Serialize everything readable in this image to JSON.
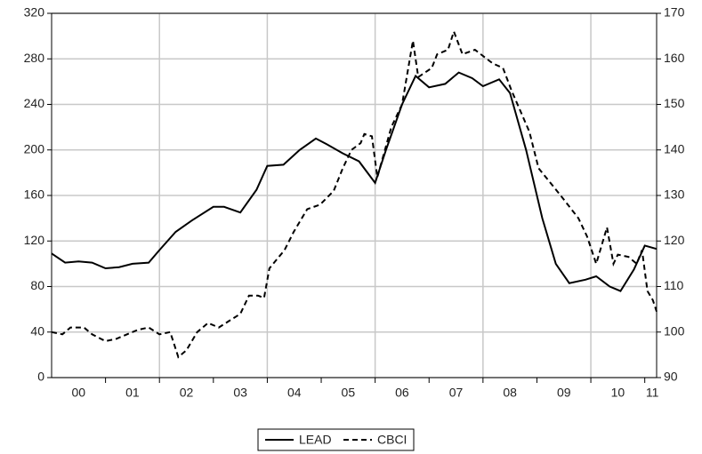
{
  "chart_data": {
    "type": "line",
    "xlim": [
      2000,
      2011.22
    ],
    "xticks": [
      {
        "value": 2000.5,
        "label": "00"
      },
      {
        "value": 2001.5,
        "label": "01"
      },
      {
        "value": 2002.5,
        "label": "02"
      },
      {
        "value": 2003.5,
        "label": "03"
      },
      {
        "value": 2004.5,
        "label": "04"
      },
      {
        "value": 2005.5,
        "label": "05"
      },
      {
        "value": 2006.5,
        "label": "06"
      },
      {
        "value": 2007.5,
        "label": "07"
      },
      {
        "value": 2008.5,
        "label": "08"
      },
      {
        "value": 2009.5,
        "label": "09"
      },
      {
        "value": 2010.5,
        "label": "10"
      },
      {
        "value": 2011.14,
        "label": "11"
      }
    ],
    "xminorticks": [
      2001,
      2002,
      2003,
      2004,
      2005,
      2006,
      2007,
      2008,
      2009,
      2010,
      2011
    ],
    "xgrid": [
      2002,
      2004,
      2006,
      2008,
      2010
    ],
    "ylim": [
      0,
      320
    ],
    "yticks": [
      0,
      40,
      80,
      120,
      160,
      200,
      240,
      280,
      320
    ],
    "y2lim": [
      90,
      170
    ],
    "y2ticks": [
      90,
      100,
      110,
      120,
      130,
      140,
      150,
      160,
      170
    ],
    "grid": true,
    "legend": "bottom",
    "series": [
      {
        "name": "LEAD",
        "color": "#000000",
        "dash": false,
        "x": [
          2000.0,
          2000.25,
          2000.5,
          2000.75,
          2001.0,
          2001.25,
          2001.5,
          2001.8,
          2002.0,
          2002.3,
          2002.6,
          2003.0,
          2003.2,
          2003.5,
          2003.8,
          2004.0,
          2004.3,
          2004.6,
          2004.9,
          2005.1,
          2005.4,
          2005.7,
          2006.0,
          2006.2,
          2006.5,
          2006.75,
          2007.0,
          2007.3,
          2007.55,
          2007.8,
          2008.0,
          2008.3,
          2008.5,
          2008.8,
          2009.1,
          2009.35,
          2009.6,
          2009.9,
          2010.1,
          2010.35,
          2010.55,
          2010.8,
          2011.0,
          2011.22
        ],
        "values": [
          109,
          101,
          102,
          101,
          96,
          97,
          100,
          101,
          112,
          128,
          138,
          150,
          150,
          145,
          165,
          186,
          187,
          200,
          210,
          205,
          197,
          190,
          171,
          200,
          240,
          265,
          255,
          258,
          268,
          263,
          256,
          262,
          250,
          200,
          140,
          100,
          83,
          86,
          89,
          80,
          76,
          95,
          116,
          113
        ]
      },
      {
        "name": "CBCI",
        "color": "#000000",
        "dash": true,
        "axis": "y2",
        "x": [
          2000.0,
          2000.2,
          2000.35,
          2000.6,
          2000.75,
          2001.0,
          2001.2,
          2001.4,
          2001.6,
          2001.8,
          2002.0,
          2002.2,
          2002.35,
          2002.5,
          2002.7,
          2002.9,
          2003.1,
          2003.3,
          2003.5,
          2003.66,
          2003.83,
          2003.94,
          2004.04,
          2004.32,
          2004.49,
          2004.74,
          2004.98,
          2005.23,
          2005.4,
          2005.56,
          2005.73,
          2005.8,
          2005.94,
          2006.04,
          2006.3,
          2006.5,
          2006.7,
          2006.8,
          2007.05,
          2007.15,
          2007.35,
          2007.46,
          2007.62,
          2007.85,
          2008.18,
          2008.37,
          2008.53,
          2008.86,
          2009.03,
          2009.44,
          2009.77,
          2009.93,
          2010.1,
          2010.3,
          2010.42,
          2010.5,
          2010.7,
          2010.85,
          2010.95,
          2011.05,
          2011.15,
          2011.22
        ],
        "values": [
          100,
          99.5,
          101,
          101,
          99.5,
          98,
          98.5,
          99.5,
          100.5,
          101,
          99.5,
          100,
          94.5,
          96,
          100,
          102,
          101,
          102.5,
          104,
          108,
          108,
          107.5,
          114,
          118,
          122,
          127,
          128,
          131,
          136,
          140,
          141.5,
          143.5,
          143,
          134,
          145,
          150,
          164,
          156,
          158,
          161,
          162,
          166,
          161,
          162,
          159,
          158,
          153,
          144,
          136,
          130,
          125,
          121,
          115,
          123,
          115,
          117,
          116.5,
          115,
          118,
          109,
          107,
          104.5
        ]
      }
    ]
  }
}
